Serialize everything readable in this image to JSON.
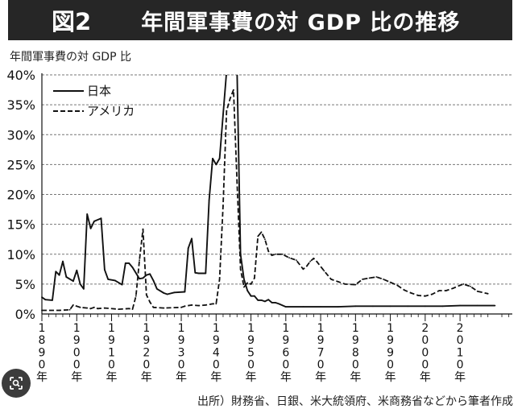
{
  "header": {
    "figure_number": "図2",
    "title": "年間軍事費の対 GDP 比の推移"
  },
  "source_note": "出所）財務省、日銀、米大統領府、米商務省などから筆者作成",
  "colors": {
    "title_bg": "#262626",
    "series_line": "#111111",
    "grid": "#777777"
  },
  "icons": {
    "corner_badge": "image-search-icon"
  },
  "chart_data": {
    "type": "line",
    "title": "年間軍事費の対 GDP 比の推移",
    "xlabel": "",
    "ylabel": "年間軍事費の対 GDP 比",
    "xlim": [
      1890,
      2025
    ],
    "ylim": [
      0,
      40
    ],
    "x_ticks": [
      "1890年",
      "1900年",
      "1910年",
      "1920年",
      "1930年",
      "1940年",
      "1950年",
      "1960年",
      "1970年",
      "1980年",
      "1990年",
      "2000年",
      "2010年"
    ],
    "y_ticks": [
      "0%",
      "5%",
      "10%",
      "15%",
      "20%",
      "25%",
      "30%",
      "35%",
      "40%"
    ],
    "grid": "horizontal dashed",
    "legend_position": "top-left",
    "series": [
      {
        "name": "日本",
        "style": "solid",
        "points": [
          [
            1890,
            2.8
          ],
          [
            1891,
            2.4
          ],
          [
            1893,
            2.3
          ],
          [
            1894,
            7.1
          ],
          [
            1895,
            6.5
          ],
          [
            1896,
            8.8
          ],
          [
            1897,
            6.2
          ],
          [
            1899,
            5.5
          ],
          [
            1900,
            7.3
          ],
          [
            1901,
            5
          ],
          [
            1902,
            4.2
          ],
          [
            1903,
            16.7
          ],
          [
            1904,
            14.3
          ],
          [
            1905,
            15.5
          ],
          [
            1907,
            16
          ],
          [
            1908,
            7.4
          ],
          [
            1909,
            5.8
          ],
          [
            1911,
            5.6
          ],
          [
            1913,
            4.9
          ],
          [
            1914,
            8.5
          ],
          [
            1915,
            8.5
          ],
          [
            1916,
            7.8
          ],
          [
            1918,
            5.9
          ],
          [
            1919,
            6
          ],
          [
            1920,
            6.5
          ],
          [
            1921,
            6.7
          ],
          [
            1922,
            5.6
          ],
          [
            1923,
            4.2
          ],
          [
            1925,
            3.5
          ],
          [
            1926,
            3.3
          ],
          [
            1928,
            3.6
          ],
          [
            1931,
            3.7
          ],
          [
            1932,
            11
          ],
          [
            1933,
            12.6
          ],
          [
            1934,
            6.9
          ],
          [
            1935,
            6.8
          ],
          [
            1937,
            6.8
          ],
          [
            1938,
            19
          ],
          [
            1939,
            26
          ],
          [
            1940,
            25
          ],
          [
            1941,
            26
          ],
          [
            1943,
            40.6
          ],
          [
            1946,
            40.6
          ],
          [
            1947,
            10
          ],
          [
            1948,
            5.8
          ],
          [
            1949,
            3.9
          ],
          [
            1950,
            3
          ],
          [
            1951,
            3
          ],
          [
            1952,
            2.3
          ],
          [
            1953,
            2.3
          ],
          [
            1954,
            2.1
          ],
          [
            1955,
            2.4
          ],
          [
            1956,
            1.9
          ],
          [
            1957,
            1.9
          ],
          [
            1958,
            1.7
          ],
          [
            1960,
            1.2
          ],
          [
            1965,
            1.2
          ],
          [
            1970,
            1.2
          ],
          [
            1975,
            1.2
          ],
          [
            1980,
            1.3
          ],
          [
            1985,
            1.3
          ],
          [
            1990,
            1.3
          ],
          [
            1995,
            1.3
          ],
          [
            2000,
            1.3
          ],
          [
            2005,
            1.3
          ],
          [
            2010,
            1.4
          ],
          [
            2015,
            1.4
          ],
          [
            2020,
            1.4
          ]
        ]
      },
      {
        "name": "アメリカ",
        "style": "dashed",
        "points": [
          [
            1890,
            0.6
          ],
          [
            1895,
            0.6
          ],
          [
            1898,
            0.7
          ],
          [
            1899,
            1.5
          ],
          [
            1901,
            1.1
          ],
          [
            1903,
            1
          ],
          [
            1904,
            0.9
          ],
          [
            1905,
            1.1
          ],
          [
            1906,
            0.9
          ],
          [
            1908,
            1
          ],
          [
            1912,
            0.8
          ],
          [
            1915,
            0.9
          ],
          [
            1916,
            0.8
          ],
          [
            1917,
            3
          ],
          [
            1918,
            9
          ],
          [
            1919,
            14.2
          ],
          [
            1920,
            3.2
          ],
          [
            1921,
            2
          ],
          [
            1922,
            1.1
          ],
          [
            1925,
            1
          ],
          [
            1930,
            1.1
          ],
          [
            1931,
            1.3
          ],
          [
            1933,
            1.5
          ],
          [
            1935,
            1.4
          ],
          [
            1937,
            1.5
          ],
          [
            1939,
            1.7
          ],
          [
            1940,
            1.7
          ],
          [
            1941,
            5.8
          ],
          [
            1942,
            18
          ],
          [
            1943,
            34
          ],
          [
            1944,
            36
          ],
          [
            1945,
            37.5
          ],
          [
            1946,
            22
          ],
          [
            1947,
            7.5
          ],
          [
            1948,
            4.5
          ],
          [
            1949,
            5.2
          ],
          [
            1950,
            5
          ],
          [
            1951,
            6
          ],
          [
            1952,
            13
          ],
          [
            1953,
            13.7
          ],
          [
            1954,
            12.5
          ],
          [
            1955,
            10.5
          ],
          [
            1956,
            9.8
          ],
          [
            1957,
            10
          ],
          [
            1959,
            10
          ],
          [
            1961,
            9.4
          ],
          [
            1963,
            9
          ],
          [
            1965,
            7.5
          ],
          [
            1966,
            8
          ],
          [
            1967,
            8.8
          ],
          [
            1968,
            9.3
          ],
          [
            1969,
            8.7
          ],
          [
            1971,
            7.2
          ],
          [
            1973,
            5.8
          ],
          [
            1975,
            5.4
          ],
          [
            1977,
            5
          ],
          [
            1980,
            4.9
          ],
          [
            1982,
            5.8
          ],
          [
            1984,
            6
          ],
          [
            1986,
            6.2
          ],
          [
            1988,
            5.8
          ],
          [
            1990,
            5.3
          ],
          [
            1992,
            4.8
          ],
          [
            1994,
            4
          ],
          [
            1996,
            3.5
          ],
          [
            1998,
            3.1
          ],
          [
            2000,
            3
          ],
          [
            2002,
            3.3
          ],
          [
            2004,
            3.9
          ],
          [
            2006,
            3.9
          ],
          [
            2008,
            4.3
          ],
          [
            2010,
            4.8
          ],
          [
            2011,
            5
          ],
          [
            2013,
            4.6
          ],
          [
            2015,
            3.8
          ],
          [
            2018,
            3.4
          ]
        ]
      }
    ]
  }
}
